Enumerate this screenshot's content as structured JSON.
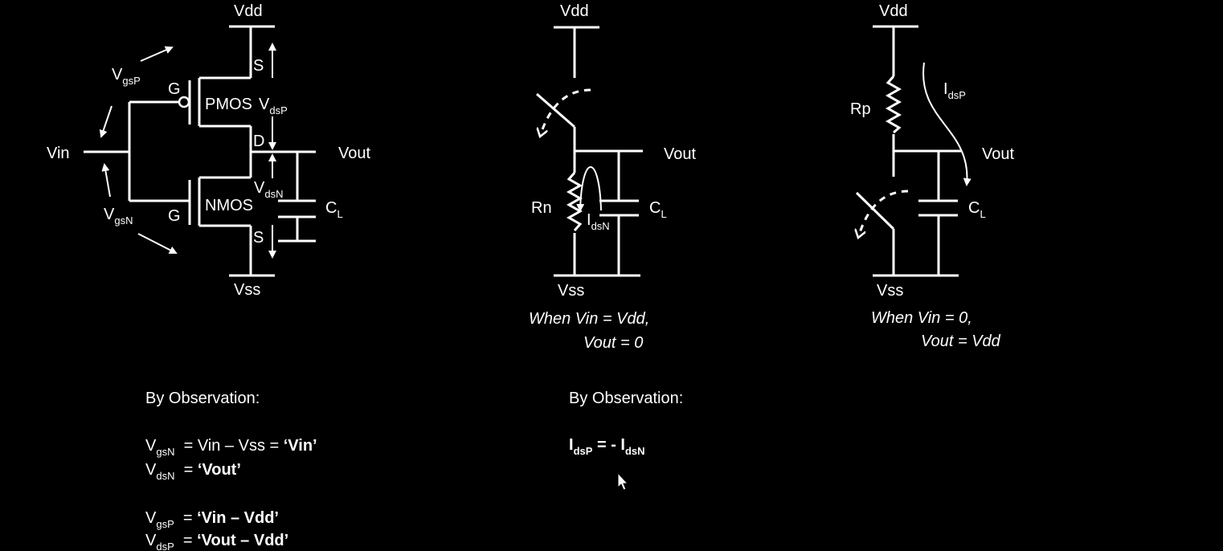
{
  "circuit1": {
    "vdd": "Vdd",
    "vss": "Vss",
    "vin": "Vin",
    "vout": "Vout",
    "pmos": "PMOS",
    "nmos": "NMOS",
    "gate_p": "G",
    "gate_n": "G",
    "source_p": "S",
    "source_n": "S",
    "drain": "D",
    "vgsp_main": "V",
    "vgsp_sub": "gsP",
    "vgsn_main": "V",
    "vgsn_sub": "gsN",
    "vdsp_main": "V",
    "vdsp_sub": "dsP",
    "vdsn_main": "V",
    "vdsn_sub": "dsN",
    "cl_main": "C",
    "cl_sub": "L"
  },
  "circuit2": {
    "vdd": "Vdd",
    "vss": "Vss",
    "vout": "Vout",
    "rn": "Rn",
    "idsn_main": "I",
    "idsn_sub": "dsN",
    "cl_main": "C",
    "cl_sub": "L",
    "caption_line1": "When Vin = Vdd,",
    "caption_line2": "Vout = 0"
  },
  "circuit3": {
    "vdd": "Vdd",
    "vss": "Vss",
    "vout": "Vout",
    "rp": "Rp",
    "idsp_main": "I",
    "idsp_sub": "dsP",
    "cl_main": "C",
    "cl_sub": "L",
    "caption_line1": "When Vin = 0,",
    "caption_line2": "Vout = Vdd"
  },
  "observation1": {
    "heading": "By Observation:",
    "eq1": {
      "main": "V",
      "sub": "gsN",
      "rest": "  = Vin – Vss = ",
      "bold": "‘Vin’"
    },
    "eq2": {
      "main": "V",
      "sub": "dsN",
      "rest": "  = ",
      "bold": "‘Vout’"
    },
    "eq3": {
      "main": "V",
      "sub": "gsP",
      "rest": "  = ",
      "bold": "‘Vin – Vdd’"
    },
    "eq4": {
      "main": "V",
      "sub": "dsP",
      "rest": "  = ",
      "bold": "‘Vout – Vdd’"
    }
  },
  "observation2": {
    "heading": "By Observation:",
    "eq_main1": "I",
    "eq_sub1": "dsP",
    "eq_mid": " = - I",
    "eq_sub2": "dsN"
  }
}
